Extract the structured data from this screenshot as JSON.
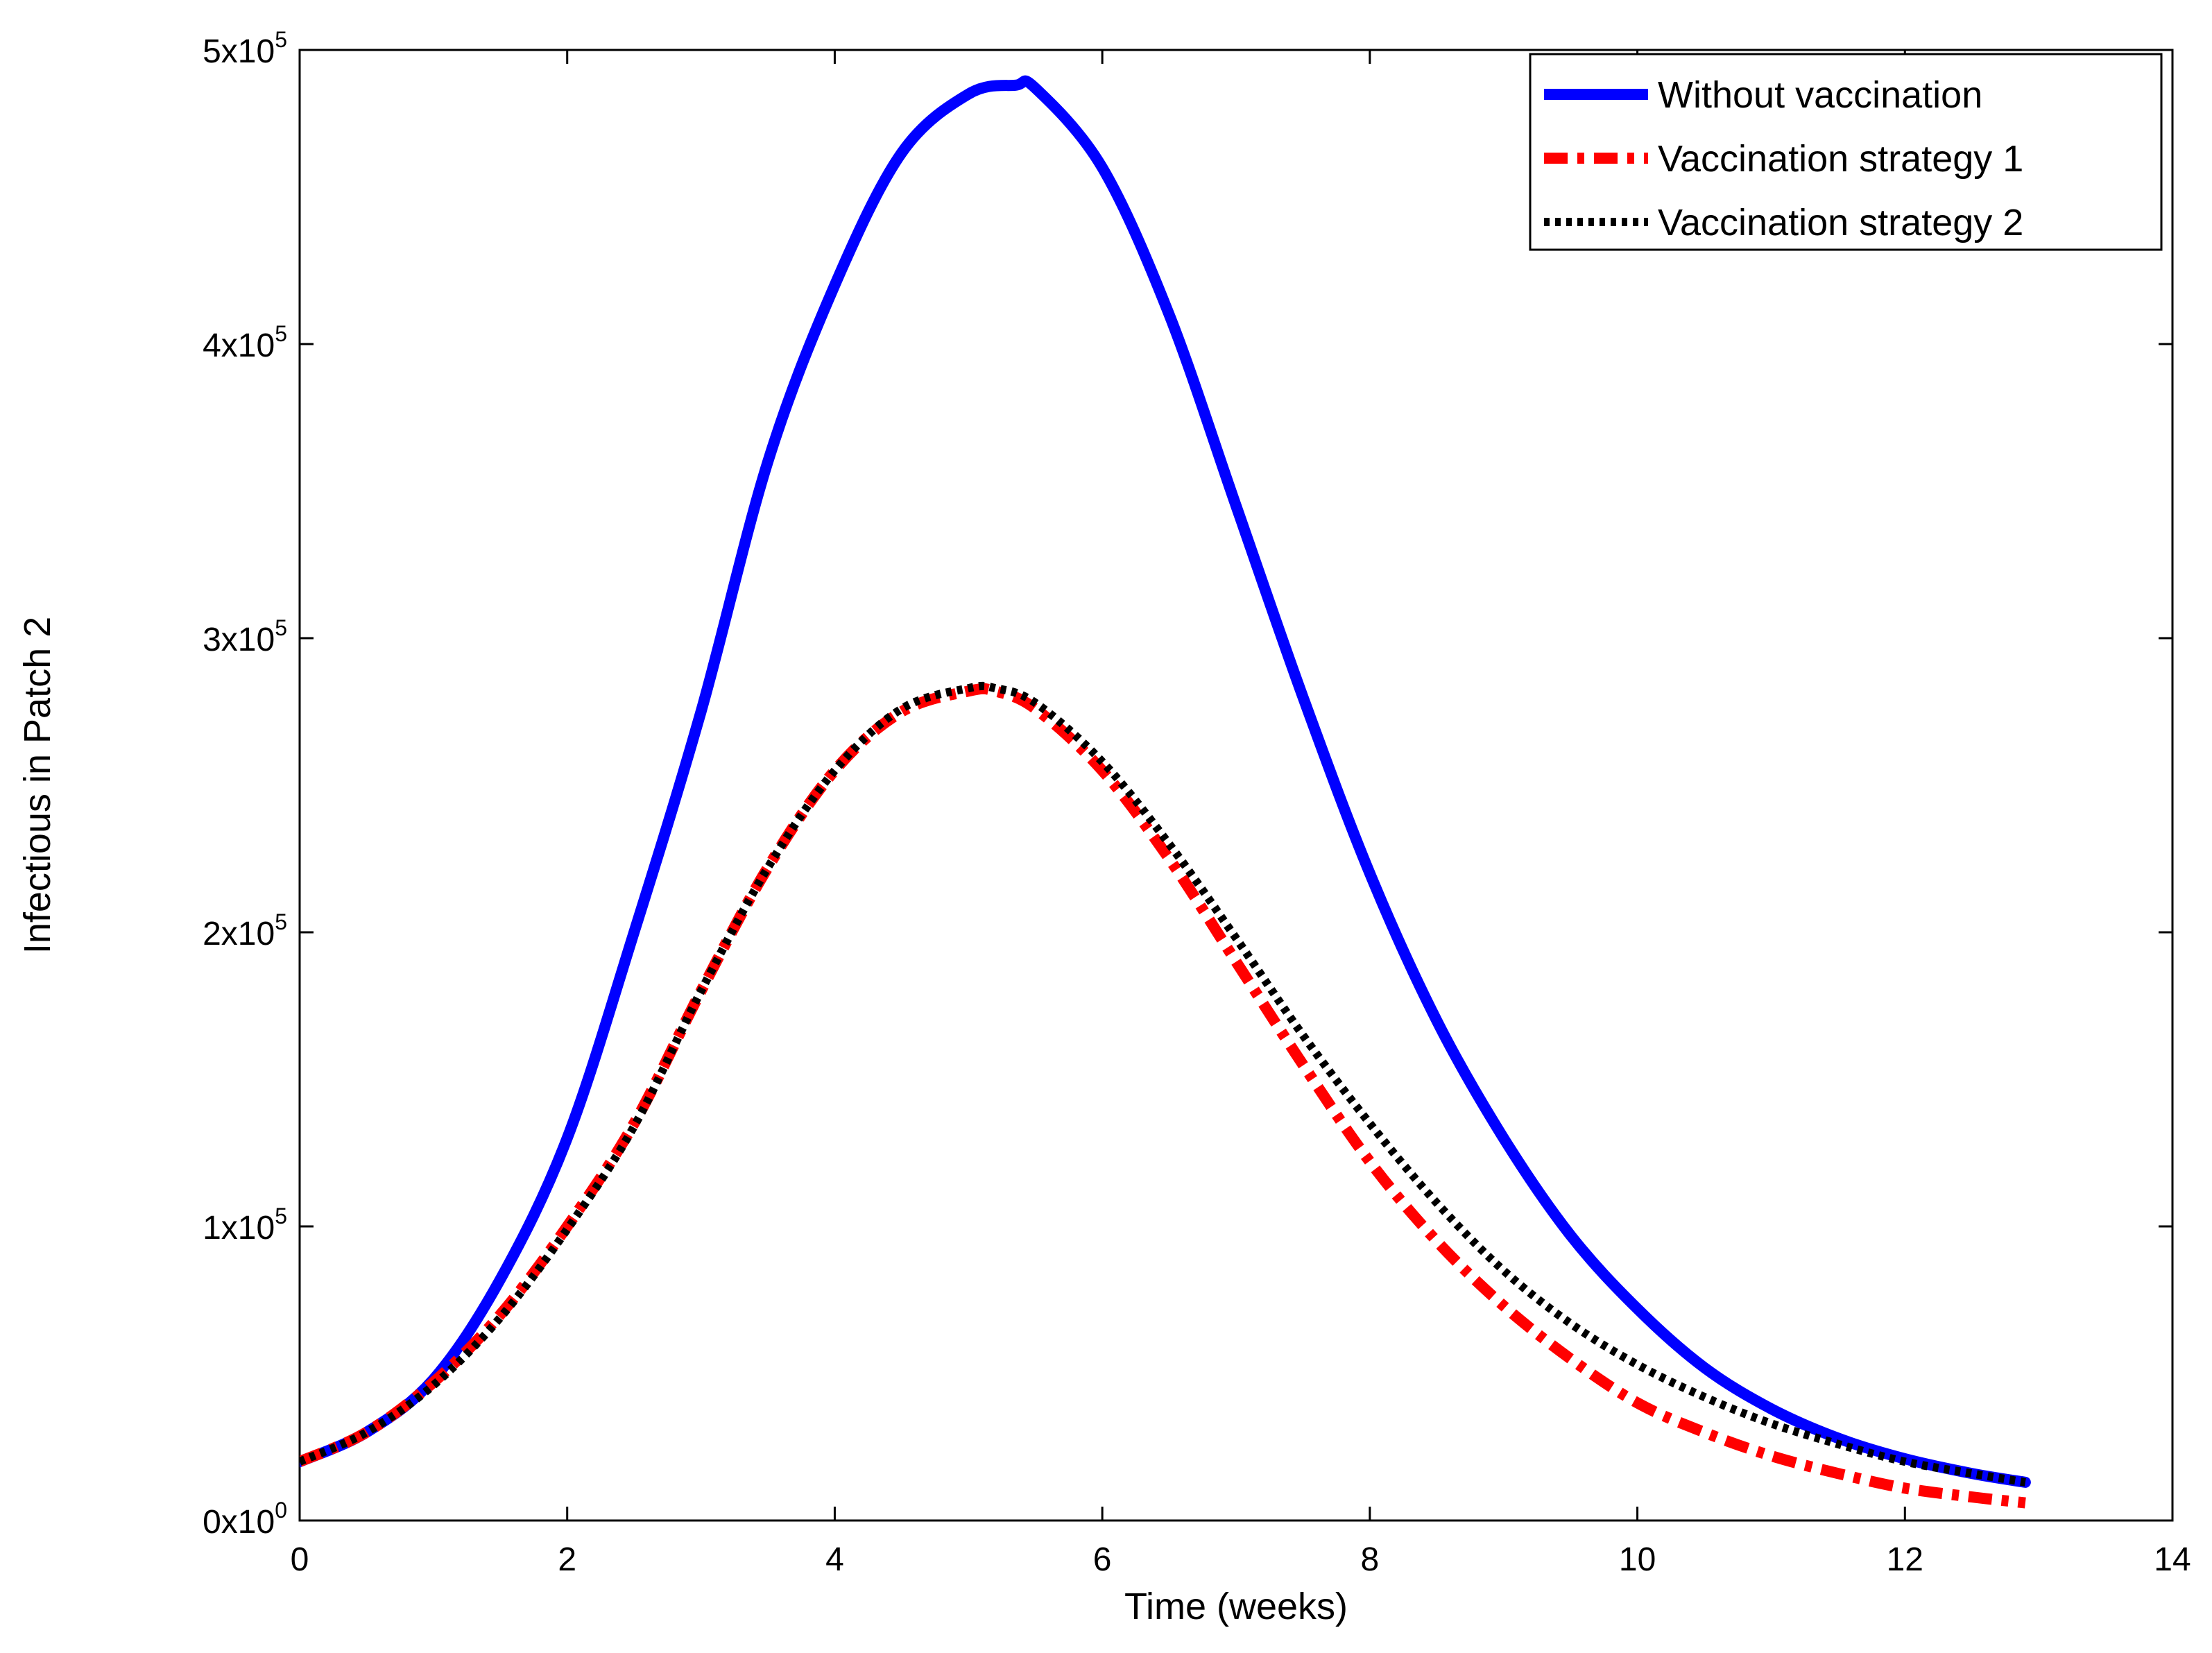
{
  "chart_data": {
    "type": "line",
    "title": "",
    "xlabel": "Time (weeks)",
    "ylabel": "Infectious in Patch 2",
    "xlim": [
      0,
      14
    ],
    "ylim": [
      0,
      500000
    ],
    "xticks": [
      0,
      2,
      4,
      6,
      8,
      10,
      12,
      14
    ],
    "xtick_labels": [
      "0",
      "2",
      "4",
      "6",
      "8",
      "10",
      "12",
      "14"
    ],
    "yticks": [
      0,
      100000,
      200000,
      300000,
      400000,
      500000
    ],
    "ytick_labels": [
      {
        "mantissa": "0x10",
        "exp": "0"
      },
      {
        "mantissa": "1x10",
        "exp": "5"
      },
      {
        "mantissa": "2x10",
        "exp": "5"
      },
      {
        "mantissa": "3x10",
        "exp": "5"
      },
      {
        "mantissa": "4x10",
        "exp": "5"
      },
      {
        "mantissa": "5x10",
        "exp": "5"
      }
    ],
    "grid": false,
    "legend_position": "top-right",
    "series": [
      {
        "name": "Without vaccination",
        "color": "#0000ff",
        "style": "solid",
        "x": [
          0,
          0.5,
          1,
          1.5,
          2,
          2.5,
          3,
          3.5,
          4,
          4.5,
          5,
          5.35,
          5.5,
          6,
          6.5,
          7,
          7.5,
          8,
          8.5,
          9,
          9.5,
          10,
          10.5,
          11,
          11.5,
          12,
          12.5,
          12.9
        ],
        "values": [
          20000,
          30000,
          48000,
          82000,
          130000,
          200000,
          275000,
          360000,
          420000,
          465000,
          485000,
          488000,
          487000,
          460000,
          410000,
          345000,
          280000,
          220000,
          170000,
          130000,
          97000,
          72000,
          52000,
          38000,
          28000,
          21000,
          16000,
          13000
        ]
      },
      {
        "name": "Vaccination strategy 1",
        "color": "#ff0000",
        "style": "dashdot",
        "x": [
          0,
          0.5,
          1,
          1.5,
          2,
          2.5,
          3,
          3.5,
          4,
          4.5,
          5,
          5.2,
          5.5,
          6,
          6.5,
          7,
          7.5,
          8,
          8.5,
          9,
          9.5,
          10,
          10.5,
          11,
          11.5,
          12,
          12.5,
          12.9
        ],
        "values": [
          20000,
          30000,
          47000,
          70000,
          100000,
          135000,
          180000,
          222000,
          255000,
          275000,
          282000,
          282000,
          276000,
          255000,
          225000,
          190000,
          155000,
          122000,
          95000,
          73000,
          55000,
          40000,
          30000,
          22000,
          16000,
          11000,
          8000,
          6000
        ]
      },
      {
        "name": "Vaccination strategy 2",
        "color": "#000000",
        "style": "dotted",
        "x": [
          0,
          0.5,
          1,
          1.5,
          2,
          2.5,
          3,
          3.5,
          4,
          4.5,
          5,
          5.2,
          5.5,
          6,
          6.5,
          7,
          7.5,
          8,
          8.5,
          9,
          9.5,
          10,
          10.5,
          11,
          11.5,
          12,
          12.5,
          12.9
        ],
        "values": [
          20000,
          30000,
          46000,
          69000,
          99000,
          134000,
          180000,
          222000,
          255000,
          276000,
          283000,
          283000,
          278000,
          258000,
          230000,
          198000,
          165000,
          135000,
          108000,
          85000,
          67000,
          53000,
          42000,
          33000,
          26000,
          20000,
          16000,
          13000
        ]
      }
    ]
  }
}
